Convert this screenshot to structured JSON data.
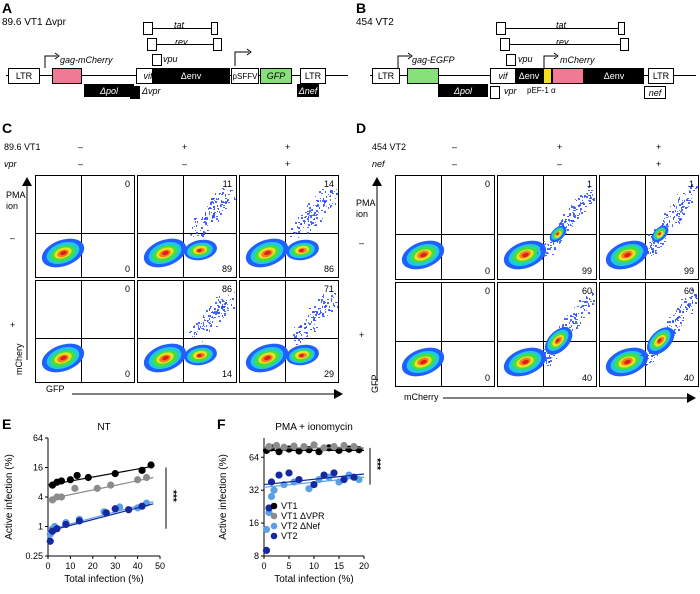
{
  "panelA": {
    "letter": "A",
    "title": "89.6 VT1 Δvpr",
    "genes": {
      "ltr5": "LTR",
      "gag": "gag-mCherry",
      "pol": "Δpol",
      "vif": "vif",
      "vpr": "Δvpr",
      "tat": "tat",
      "rev": "rev",
      "vpu": "vpu",
      "env": "Δenv",
      "promoter": "pSFFV",
      "gfp": "GFP",
      "nef": "Δnef",
      "ltr3": "LTR"
    }
  },
  "panelB": {
    "letter": "B",
    "title": "454 VT2",
    "genes": {
      "ltr5": "LTR",
      "gag": "gag-EGFP",
      "pol": "Δpol",
      "vif": "vif",
      "vpr": "vpr",
      "tat": "tat",
      "rev": "rev",
      "vpu": "vpu",
      "env1": "Δenv",
      "promoter": "pEF-1 α",
      "mcherry": "mCherry",
      "env2": "Δenv",
      "nef": "nef",
      "ltr3": "LTR"
    }
  },
  "panelC": {
    "letter": "C",
    "row1_label": "89.6 VT1",
    "row2_label": "vpr",
    "row1_signs": [
      "–",
      "+",
      "+"
    ],
    "row2_signs": [
      "–",
      "–",
      "+"
    ],
    "y_axis_title": "PMA\nion",
    "yaxis_title_line1": "PMA",
    "yaxis_title_line2": "ion",
    "row_minus": "–",
    "row_plus": "+",
    "ylabel": "mChery",
    "xlabel": "GFP",
    "plots": [
      {
        "top": "0",
        "bottom": "0"
      },
      {
        "top": "11",
        "bottom": "89"
      },
      {
        "top": "14",
        "bottom": "86"
      },
      {
        "top": "0",
        "bottom": "0"
      },
      {
        "top": "86",
        "bottom": "14"
      },
      {
        "top": "71",
        "bottom": "29"
      }
    ]
  },
  "panelD": {
    "letter": "D",
    "row1_label": "454 VT2",
    "row2_label": "nef",
    "row1_signs": [
      "–",
      "+",
      "+"
    ],
    "row2_signs": [
      "–",
      "–",
      "+"
    ],
    "yaxis_title_line1": "PMA",
    "yaxis_title_line2": "ion",
    "row_minus": "–",
    "row_plus": "+",
    "ylabel": "GFP",
    "xlabel": "mCherry",
    "plots": [
      {
        "top": "0",
        "bottom": "0"
      },
      {
        "top": "1",
        "bottom": "99"
      },
      {
        "top": "1",
        "bottom": "99"
      },
      {
        "top": "0",
        "bottom": "0"
      },
      {
        "top": "60",
        "bottom": "40"
      },
      {
        "top": "60",
        "bottom": "40"
      }
    ]
  },
  "panelE": {
    "letter": "E",
    "significance": "***"
  },
  "panelF": {
    "letter": "F",
    "significance": "***"
  },
  "colors": {
    "vt1": "#000000",
    "vt1_dvpr": "#8c8c8c",
    "vt2_dnef": "#5aa0e6",
    "vt2": "#1428a0",
    "mcherry_box": "#f07a96",
    "gfp_box": "#88e07a",
    "egfp_box": "#88e07a",
    "promoter_yellow": "#f0e020"
  },
  "chart_data": [
    {
      "type": "scatter",
      "title": "NT",
      "xlabel": "Total infection (%)",
      "ylabel": "Active infection (%)",
      "xlim": [
        0,
        50
      ],
      "ylim": [
        0.25,
        64
      ],
      "yscale": "log2",
      "xticks": [
        0,
        10,
        20,
        30,
        40,
        50
      ],
      "yticks": [
        0.25,
        1,
        4,
        16,
        64
      ],
      "ytick_labels": [
        "0.25",
        "1",
        "4",
        "16",
        "64"
      ],
      "series": [
        {
          "name": "VT1",
          "color": "#000000",
          "points": [
            [
              2,
              7
            ],
            [
              4,
              8
            ],
            [
              6,
              8.5
            ],
            [
              10,
              9
            ],
            [
              13,
              11
            ],
            [
              18,
              10
            ],
            [
              30,
              12
            ],
            [
              42,
              14
            ],
            [
              46,
              18
            ]
          ],
          "fit": [
            [
              0,
              7
            ],
            [
              47,
              17
            ]
          ]
        },
        {
          "name": "VT1 ΔVPR",
          "color": "#8c8c8c",
          "points": [
            [
              2,
              3.5
            ],
            [
              4,
              4
            ],
            [
              6,
              4
            ],
            [
              12,
              6
            ],
            [
              22,
              6
            ],
            [
              28,
              7
            ],
            [
              40,
              9
            ],
            [
              44,
              10
            ]
          ],
          "fit": [
            [
              0,
              3.6
            ],
            [
              47,
              10
            ]
          ]
        },
        {
          "name": "VT2 ΔNef",
          "color": "#5aa0e6",
          "points": [
            [
              1,
              0.7
            ],
            [
              2,
              0.9
            ],
            [
              3,
              1
            ],
            [
              8,
              1.2
            ],
            [
              14,
              1.4
            ],
            [
              25,
              2
            ],
            [
              32,
              2.5
            ],
            [
              40,
              2.4
            ],
            [
              44,
              3
            ]
          ],
          "fit": [
            [
              0,
              0.85
            ],
            [
              47,
              3.2
            ]
          ]
        },
        {
          "name": "VT2",
          "color": "#1428a0",
          "points": [
            [
              1,
              0.5
            ],
            [
              2,
              0.8
            ],
            [
              4,
              0.9
            ],
            [
              8,
              1.1
            ],
            [
              14,
              1.3
            ],
            [
              26,
              1.9
            ],
            [
              30,
              2.3
            ],
            [
              36,
              2.2
            ],
            [
              42,
              2.6
            ]
          ],
          "fit": [
            [
              0,
              0.8
            ],
            [
              47,
              2.9
            ]
          ]
        }
      ]
    },
    {
      "type": "scatter",
      "title": "PMA + ionomycin",
      "xlabel": "Total infection (%)",
      "ylabel": "Active infection (%)",
      "xlim": [
        0,
        20
      ],
      "ylim": [
        8,
        96
      ],
      "yscale": "log2",
      "xticks": [
        0,
        5,
        10,
        15,
        20
      ],
      "yticks": [
        8,
        16,
        32,
        64
      ],
      "ytick_labels": [
        "8",
        "16",
        "32",
        "64"
      ],
      "legend": [
        "VT1",
        "VT1 ΔVPR",
        "VT2 ΔNef",
        "VT2"
      ],
      "legend_position": "bottom-left",
      "series": [
        {
          "name": "VT1",
          "color": "#000000",
          "points": [
            [
              0.5,
              74
            ],
            [
              1.5,
              78
            ],
            [
              3,
              72
            ],
            [
              5,
              76
            ],
            [
              7,
              73
            ],
            [
              9,
              75
            ],
            [
              11,
              72
            ],
            [
              13,
              78
            ],
            [
              15,
              74
            ],
            [
              17,
              76
            ],
            [
              19,
              75
            ]
          ],
          "fit": [
            [
              0,
              74
            ],
            [
              20,
              74
            ]
          ]
        },
        {
          "name": "VT1 ΔVPR",
          "color": "#8c8c8c",
          "points": [
            [
              1,
              80
            ],
            [
              2.5,
              82
            ],
            [
              4,
              79
            ],
            [
              6,
              81
            ],
            [
              8,
              80
            ],
            [
              10,
              83
            ],
            [
              12,
              78
            ],
            [
              14,
              80
            ],
            [
              16,
              82
            ],
            [
              18,
              80
            ]
          ],
          "fit": [
            [
              0,
              78
            ],
            [
              20,
              78
            ]
          ]
        },
        {
          "name": "VT2 ΔNef",
          "color": "#5aa0e6",
          "points": [
            [
              0.5,
              14
            ],
            [
              1,
              20
            ],
            [
              1.5,
              28
            ],
            [
              2,
              32
            ],
            [
              4,
              36
            ],
            [
              6,
              38
            ],
            [
              9,
              33
            ],
            [
              11,
              40
            ],
            [
              13,
              42
            ],
            [
              15,
              38
            ],
            [
              17,
              44
            ],
            [
              19,
              40
            ]
          ],
          "fit": [
            [
              0,
              34
            ],
            [
              20,
              42
            ]
          ]
        },
        {
          "name": "VT2",
          "color": "#1428a0",
          "points": [
            [
              0.5,
              9
            ],
            [
              1,
              22
            ],
            [
              1.5,
              38
            ],
            [
              3,
              44
            ],
            [
              5,
              46
            ],
            [
              7,
              40
            ],
            [
              10,
              36
            ],
            [
              12,
              44
            ],
            [
              14,
              46
            ],
            [
              16,
              40
            ],
            [
              18,
              42
            ]
          ],
          "fit": [
            [
              0,
              36
            ],
            [
              20,
              45
            ]
          ]
        }
      ]
    }
  ]
}
